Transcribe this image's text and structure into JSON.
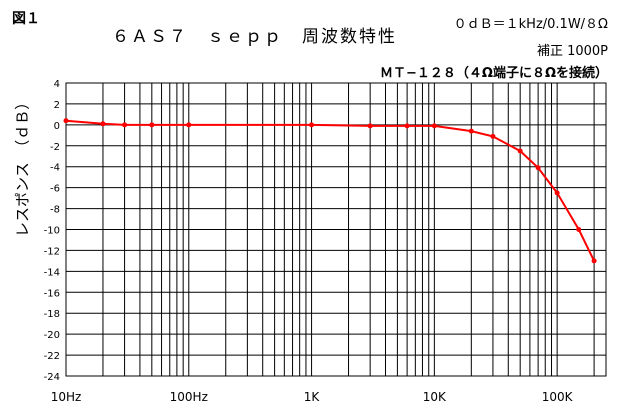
{
  "header": {
    "figure_label": "図１",
    "title": "６ＡＳ７　ｓｅｐｐ　周波数特性",
    "reference": "０ｄＢ＝１kHz/0.1W/８Ω",
    "compensation": "補正 1000P",
    "transformer": "ＭＴ−１２８（４Ω端子に８Ωを接続）"
  },
  "chart_data": {
    "type": "line",
    "xscale": "log",
    "xlim": [
      10,
      250000
    ],
    "ylim": [
      -24,
      4
    ],
    "ylabel": "レスポンス　（ｄＢ）",
    "xticks": [
      {
        "value": 10,
        "label": "10Hz"
      },
      {
        "value": 100,
        "label": "100Hz"
      },
      {
        "value": 1000,
        "label": "1K"
      },
      {
        "value": 10000,
        "label": "10K"
      },
      {
        "value": 100000,
        "label": "100K"
      }
    ],
    "yticks": [
      4,
      2,
      0,
      -2,
      -4,
      -6,
      -8,
      -10,
      -12,
      -14,
      -16,
      -18,
      -20,
      -22,
      -24
    ],
    "grid": true,
    "color": "#ff0000",
    "series": [
      {
        "x": [
          10,
          20,
          30,
          50,
          100,
          1000,
          3000,
          6000,
          10000,
          20000,
          30000,
          50000,
          70000,
          100000,
          150000,
          200000
        ],
        "y": [
          0.4,
          0.1,
          0.0,
          0.0,
          0.0,
          0.0,
          -0.1,
          -0.1,
          -0.1,
          -0.6,
          -1.1,
          -2.5,
          -4.1,
          -6.5,
          -10.0,
          -13.0
        ]
      }
    ]
  }
}
